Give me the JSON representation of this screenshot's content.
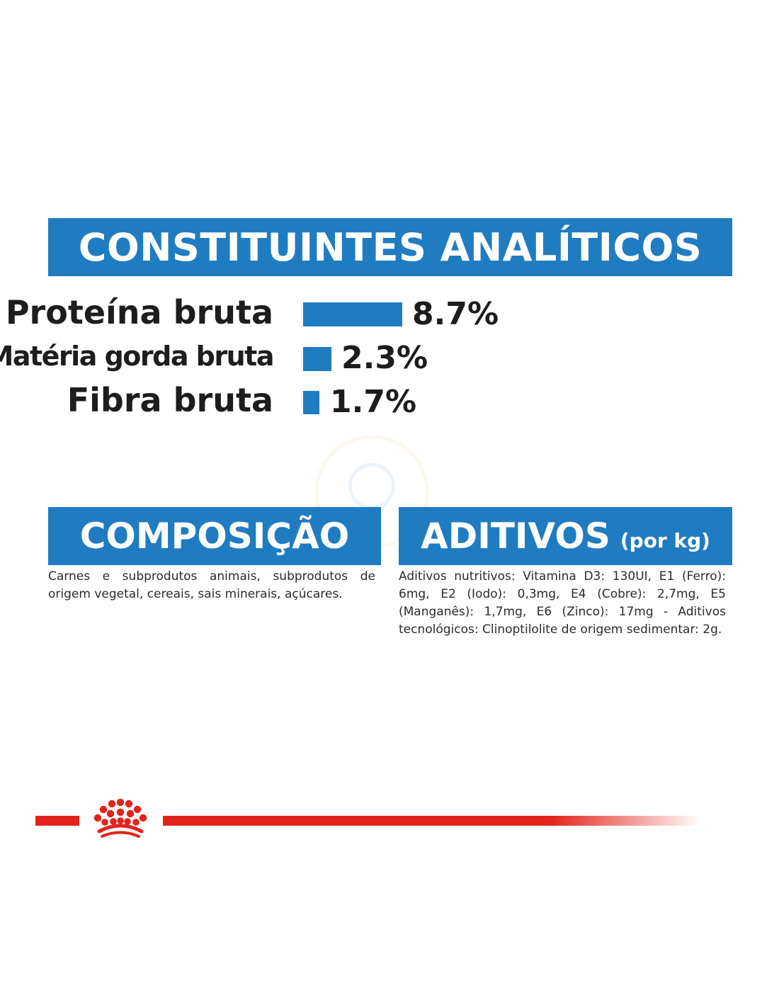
{
  "analytical": {
    "title": "CONSTITUINTES ANALÍTICOS",
    "items": [
      {
        "label": "Proteína bruta",
        "value": "8.7%",
        "percent": 8.7
      },
      {
        "label": "Matéria gorda bruta",
        "value": "2.3%",
        "percent": 2.3
      },
      {
        "label": "Fibra bruta",
        "value": "1.7%",
        "percent": 1.7
      }
    ]
  },
  "composition": {
    "title": "COMPOSIÇÃO",
    "text": "Carnes e subprodutos animais, subprodutos de origem vegetal, cereais, sais minerais, açúcares."
  },
  "additives": {
    "title": "ADITIVOS",
    "title_suffix": "(por kg)",
    "text": "Aditivos nutritivos: Vitamina D3: 130UI, E1 (Ferro): 6mg, E2 (Iodo): 0,3mg, E4 (Cobre): 2,7mg, E5 (Manganês): 1,7mg, E6 (Zinco): 17mg - Aditivos tecnológicos: Clinoptilolite de origem sedimentar: 2g."
  },
  "colors": {
    "accent_blue": "#1f7cc1",
    "brand_red": "#e2231a",
    "text_dark": "#1d1d1b"
  },
  "icons": {
    "logo": "royal-canin-crown-icon",
    "watermark": "puppy-watermark-icon"
  }
}
